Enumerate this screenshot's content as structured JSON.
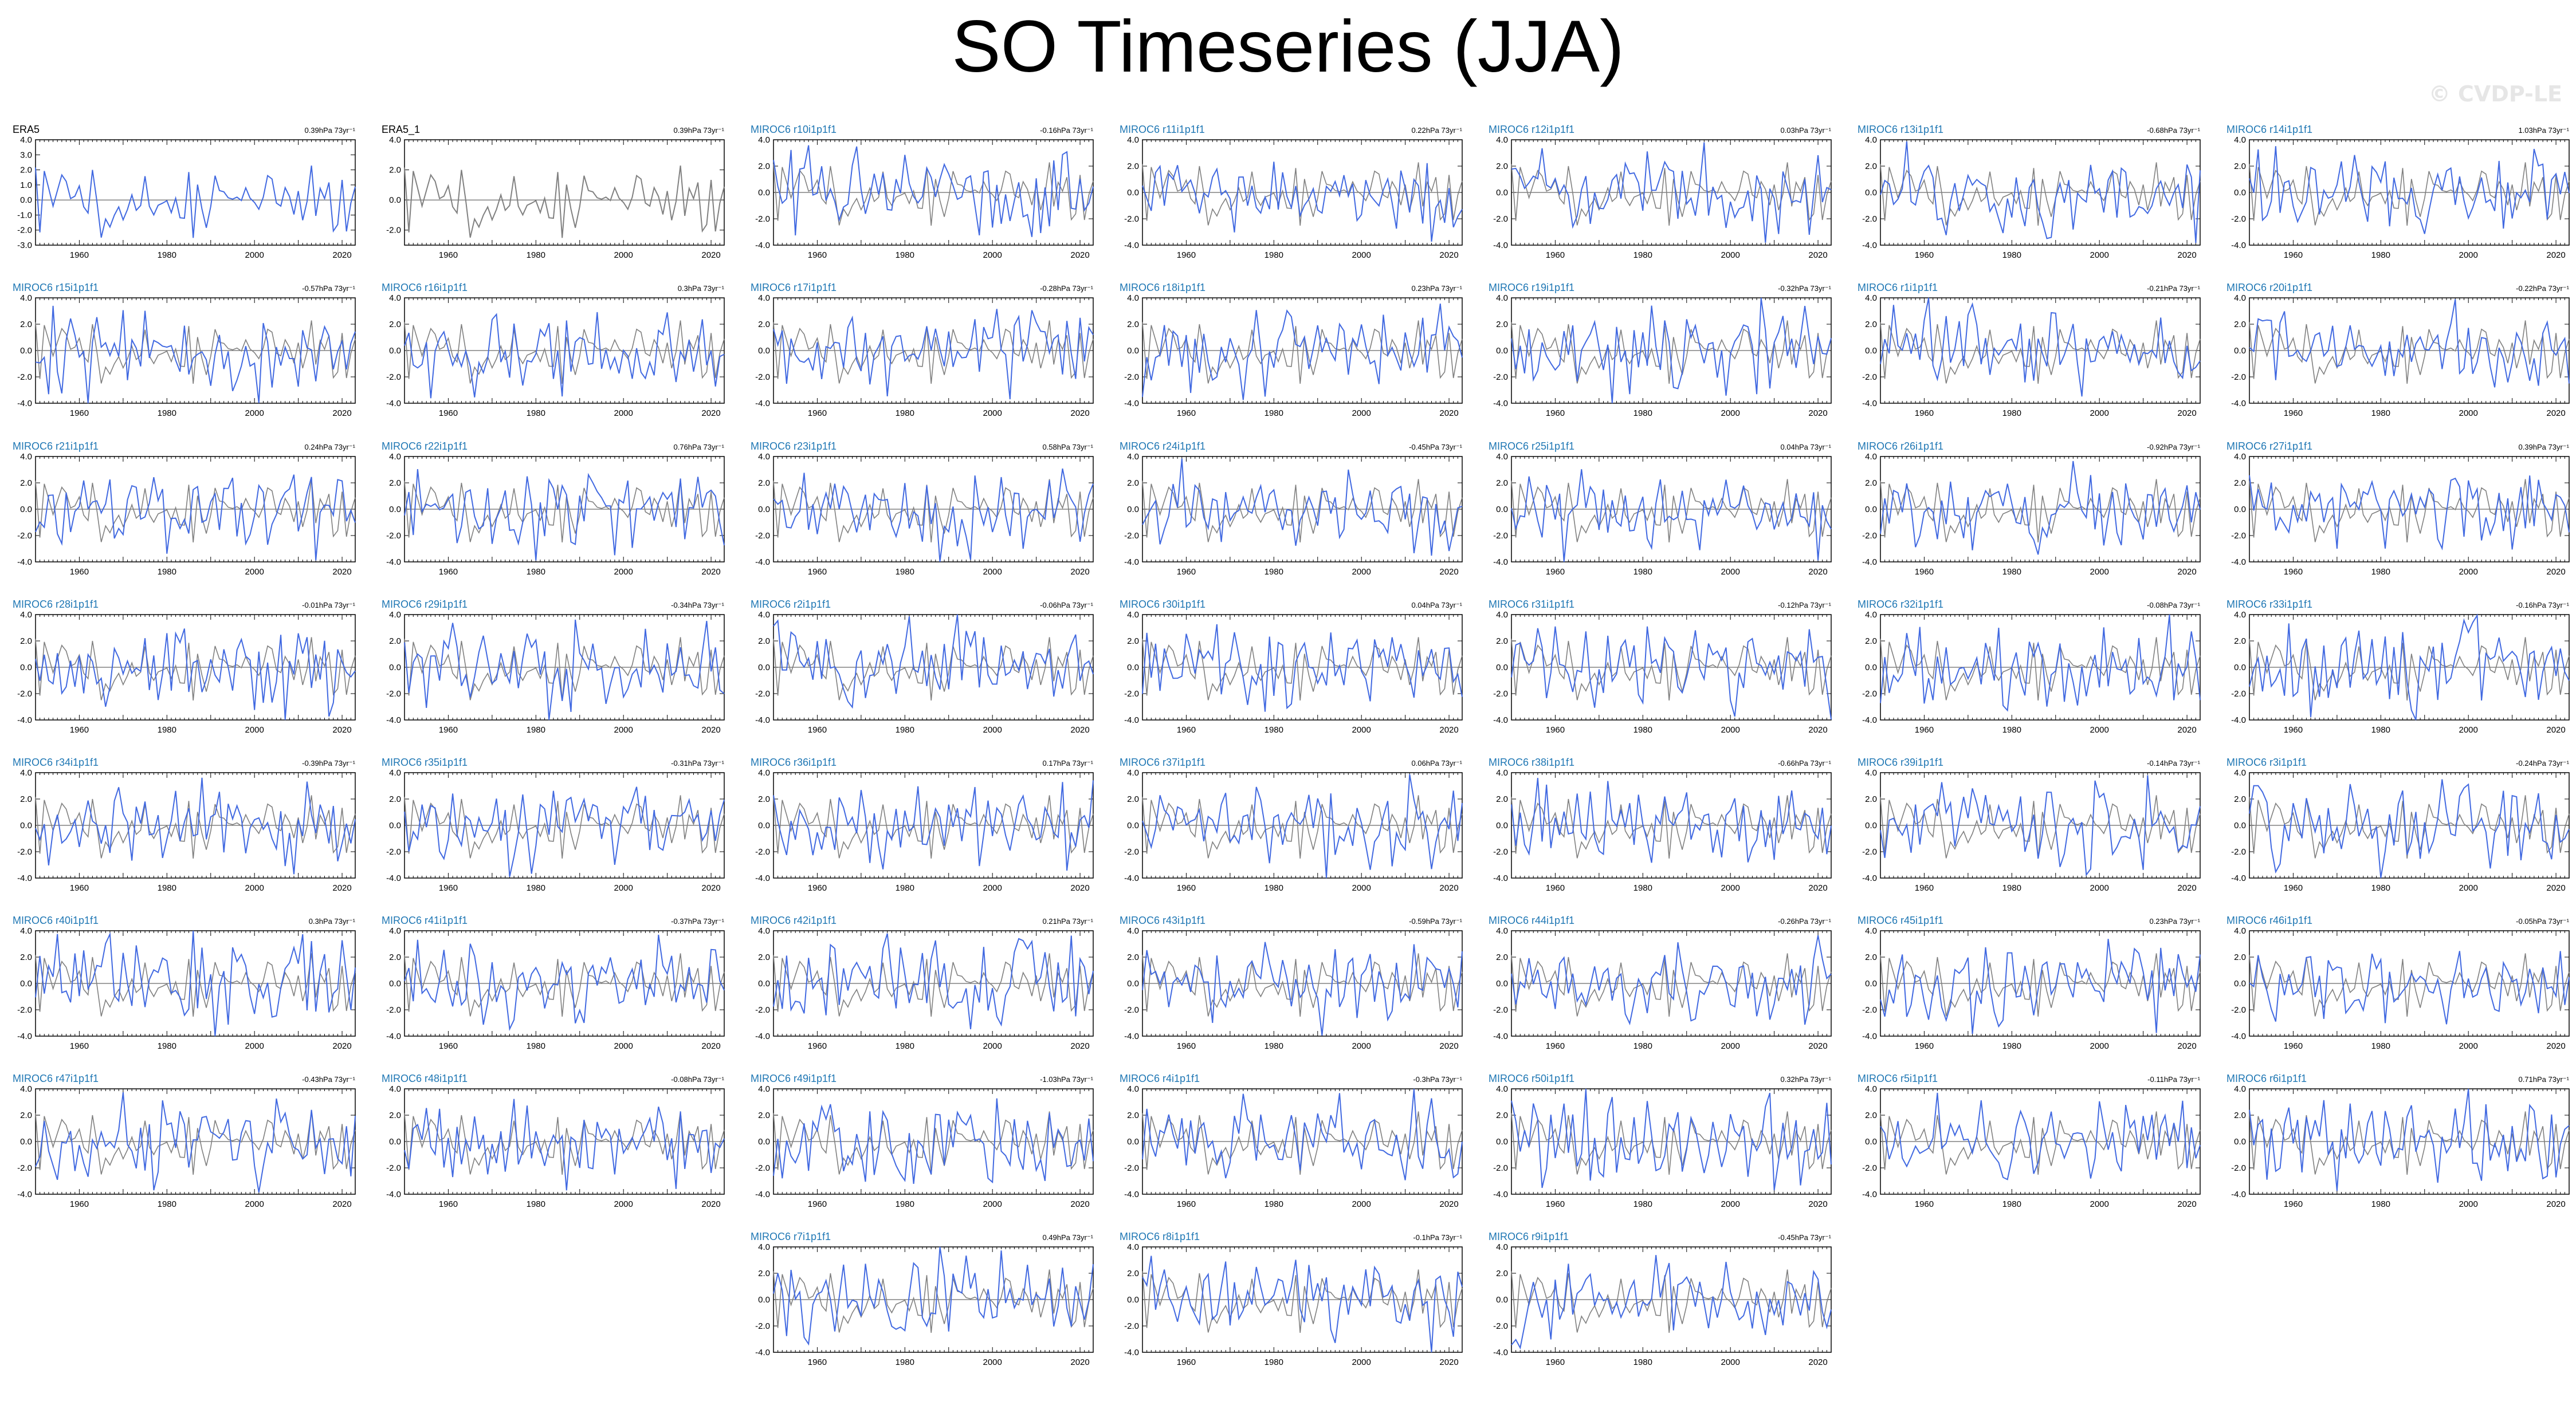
{
  "title": "SO Timeseries (JJA)",
  "watermark": "© CVDP-LE",
  "colors": {
    "ensemble": "#4169e1",
    "observation": "#808080",
    "obs_label": "#000000",
    "member_label": "#1f77b4"
  },
  "chart_data": {
    "type": "line",
    "layout": "7 columns × 8 rows small multiples",
    "x_range": [
      1950,
      2023
    ],
    "x_ticks": [
      1960,
      1980,
      2000,
      2020
    ],
    "panels": [
      {
        "name": "ERA5",
        "trend": "0.39hPa 73yr⁻¹",
        "ylim": [
          -3,
          4
        ],
        "yticks": [
          "4.0",
          "3.0",
          "2.0",
          "1.0",
          "0.0",
          "-1.0",
          "-2.0",
          "-3.0"
        ],
        "obs": true,
        "mainColor": "ensemble",
        "showRef": false,
        "seed": 101
      },
      {
        "name": "ERA5_1",
        "trend": "0.39hPa 73yr⁻¹",
        "ylim": [
          -3,
          4
        ],
        "yticks": [
          "4.0",
          "2.0",
          "0.0",
          "-2.0"
        ],
        "obs": true,
        "mainColor": "observation",
        "showRef": false,
        "seed": 102
      },
      {
        "name": "MIROC6 r10i1p1f1",
        "trend": "-0.16hPa 73yr⁻¹",
        "seed": 1
      },
      {
        "name": "MIROC6 r11i1p1f1",
        "trend": "0.22hPa 73yr⁻¹",
        "seed": 2
      },
      {
        "name": "MIROC6 r12i1p1f1",
        "trend": "0.03hPa 73yr⁻¹",
        "seed": 3
      },
      {
        "name": "MIROC6 r13i1p1f1",
        "trend": "-0.68hPa 73yr⁻¹",
        "seed": 4
      },
      {
        "name": "MIROC6 r14i1p1f1",
        "trend": "1.03hPa 73yr⁻¹",
        "seed": 5
      },
      {
        "name": "MIROC6 r15i1p1f1",
        "trend": "-0.57hPa 73yr⁻¹",
        "seed": 6
      },
      {
        "name": "MIROC6 r16i1p1f1",
        "trend": "0.3hPa 73yr⁻¹",
        "seed": 7
      },
      {
        "name": "MIROC6 r17i1p1f1",
        "trend": "-0.28hPa 73yr⁻¹",
        "seed": 8
      },
      {
        "name": "MIROC6 r18i1p1f1",
        "trend": "0.23hPa 73yr⁻¹",
        "seed": 9
      },
      {
        "name": "MIROC6 r19i1p1f1",
        "trend": "-0.32hPa 73yr⁻¹",
        "seed": 10
      },
      {
        "name": "MIROC6 r1i1p1f1",
        "trend": "-0.21hPa 73yr⁻¹",
        "seed": 11
      },
      {
        "name": "MIROC6 r20i1p1f1",
        "trend": "-0.22hPa 73yr⁻¹",
        "seed": 12
      },
      {
        "name": "MIROC6 r21i1p1f1",
        "trend": "0.24hPa 73yr⁻¹",
        "seed": 13
      },
      {
        "name": "MIROC6 r22i1p1f1",
        "trend": "0.76hPa 73yr⁻¹",
        "seed": 14
      },
      {
        "name": "MIROC6 r23i1p1f1",
        "trend": "0.58hPa 73yr⁻¹",
        "seed": 15
      },
      {
        "name": "MIROC6 r24i1p1f1",
        "trend": "-0.45hPa 73yr⁻¹",
        "seed": 16
      },
      {
        "name": "MIROC6 r25i1p1f1",
        "trend": "0.04hPa 73yr⁻¹",
        "seed": 17
      },
      {
        "name": "MIROC6 r26i1p1f1",
        "trend": "-0.92hPa 73yr⁻¹",
        "seed": 18
      },
      {
        "name": "MIROC6 r27i1p1f1",
        "trend": "0.39hPa 73yr⁻¹",
        "seed": 19
      },
      {
        "name": "MIROC6 r28i1p1f1",
        "trend": "-0.01hPa 73yr⁻¹",
        "seed": 20
      },
      {
        "name": "MIROC6 r29i1p1f1",
        "trend": "-0.34hPa 73yr⁻¹",
        "seed": 21
      },
      {
        "name": "MIROC6 r2i1p1f1",
        "trend": "-0.06hPa 73yr⁻¹",
        "seed": 22
      },
      {
        "name": "MIROC6 r30i1p1f1",
        "trend": "0.04hPa 73yr⁻¹",
        "seed": 23
      },
      {
        "name": "MIROC6 r31i1p1f1",
        "trend": "-0.12hPa 73yr⁻¹",
        "seed": 24
      },
      {
        "name": "MIROC6 r32i1p1f1",
        "trend": "-0.08hPa 73yr⁻¹",
        "seed": 25
      },
      {
        "name": "MIROC6 r33i1p1f1",
        "trend": "-0.16hPa 73yr⁻¹",
        "seed": 26
      },
      {
        "name": "MIROC6 r34i1p1f1",
        "trend": "-0.39hPa 73yr⁻¹",
        "seed": 27
      },
      {
        "name": "MIROC6 r35i1p1f1",
        "trend": "-0.31hPa 73yr⁻¹",
        "seed": 28
      },
      {
        "name": "MIROC6 r36i1p1f1",
        "trend": "0.17hPa 73yr⁻¹",
        "seed": 29
      },
      {
        "name": "MIROC6 r37i1p1f1",
        "trend": "0.06hPa 73yr⁻¹",
        "seed": 30
      },
      {
        "name": "MIROC6 r38i1p1f1",
        "trend": "-0.66hPa 73yr⁻¹",
        "seed": 31
      },
      {
        "name": "MIROC6 r39i1p1f1",
        "trend": "-0.14hPa 73yr⁻¹",
        "seed": 32
      },
      {
        "name": "MIROC6 r3i1p1f1",
        "trend": "-0.24hPa 73yr⁻¹",
        "seed": 33
      },
      {
        "name": "MIROC6 r40i1p1f1",
        "trend": "0.3hPa 73yr⁻¹",
        "seed": 34
      },
      {
        "name": "MIROC6 r41i1p1f1",
        "trend": "-0.37hPa 73yr⁻¹",
        "seed": 35
      },
      {
        "name": "MIROC6 r42i1p1f1",
        "trend": "0.21hPa 73yr⁻¹",
        "seed": 36
      },
      {
        "name": "MIROC6 r43i1p1f1",
        "trend": "-0.59hPa 73yr⁻¹",
        "seed": 37
      },
      {
        "name": "MIROC6 r44i1p1f1",
        "trend": "-0.26hPa 73yr⁻¹",
        "seed": 38
      },
      {
        "name": "MIROC6 r45i1p1f1",
        "trend": "0.23hPa 73yr⁻¹",
        "seed": 39
      },
      {
        "name": "MIROC6 r46i1p1f1",
        "trend": "-0.05hPa 73yr⁻¹",
        "seed": 40
      },
      {
        "name": "MIROC6 r47i1p1f1",
        "trend": "-0.43hPa 73yr⁻¹",
        "seed": 41
      },
      {
        "name": "MIROC6 r48i1p1f1",
        "trend": "-0.08hPa 73yr⁻¹",
        "seed": 42
      },
      {
        "name": "MIROC6 r49i1p1f1",
        "trend": "-1.03hPa 73yr⁻¹",
        "seed": 43
      },
      {
        "name": "MIROC6 r4i1p1f1",
        "trend": "-0.3hPa 73yr⁻¹",
        "seed": 44
      },
      {
        "name": "MIROC6 r50i1p1f1",
        "trend": "0.32hPa 73yr⁻¹",
        "seed": 45
      },
      {
        "name": "MIROC6 r5i1p1f1",
        "trend": "-0.11hPa 73yr⁻¹",
        "seed": 46
      },
      {
        "name": "MIROC6 r6i1p1f1",
        "trend": "0.71hPa 73yr⁻¹",
        "seed": 47
      },
      {
        "name": "MIROC6 r7i1p1f1",
        "trend": "0.49hPa 73yr⁻¹",
        "seed": 48
      },
      {
        "name": "MIROC6 r8i1p1f1",
        "trend": "-0.1hPa 73yr⁻¹",
        "seed": 49
      },
      {
        "name": "MIROC6 r9i1p1f1",
        "trend": "-0.45hPa 73yr⁻¹",
        "seed": 50
      }
    ],
    "default_ylim": [
      -4,
      4
    ],
    "default_yticks": [
      "4.0",
      "2.0",
      "0.0",
      "-2.0",
      "-4.0"
    ]
  }
}
